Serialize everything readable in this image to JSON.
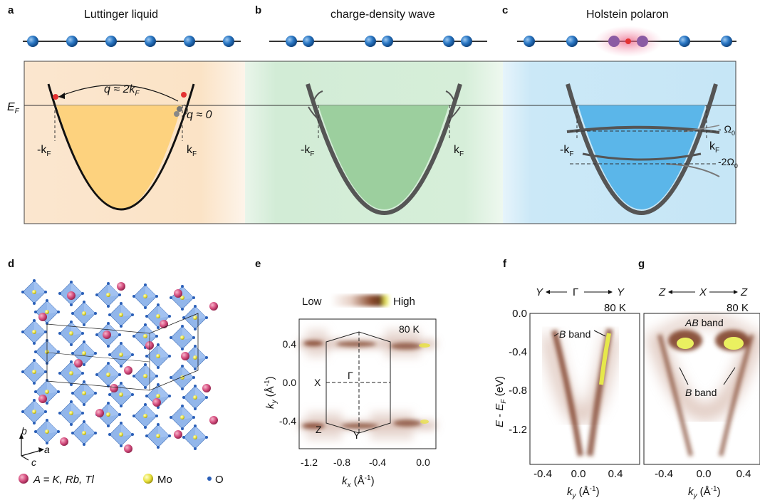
{
  "panels": {
    "a": {
      "label": "a",
      "title": "Luttinger liquid"
    },
    "b": {
      "label": "b",
      "title": "charge-density wave"
    },
    "c": {
      "label": "c",
      "title": "Holstein polaron"
    },
    "d": {
      "label": "d"
    },
    "e": {
      "label": "e"
    },
    "f": {
      "label": "f"
    },
    "g": {
      "label": "g"
    }
  },
  "top": {
    "ef_label": "E",
    "ef_sub": "F",
    "q_2kf": "q ≈ 2k",
    "q_2kf_sub": "F",
    "q_0": "q ≈ 0",
    "minus_kf": "-k",
    "kf": "k",
    "kf_sub": "F",
    "omega0": "- Ω",
    "omega0_sub": "0",
    "two_omega0": "-2Ω",
    "two_omega0_sub": "0"
  },
  "crystal": {
    "legend_A": "A = K, Rb, Tl",
    "legend_Mo": "Mo",
    "legend_O": "O",
    "axis_a": "a",
    "axis_b": "b",
    "axis_c": "c"
  },
  "fs_map": {
    "colorbar_low": "Low",
    "colorbar_high": "High",
    "temp": "80 K",
    "ylabel": "k",
    "ylabel_sub": "y",
    "ylabel_unit": " (Å",
    "ylabel_unit_sup": "-1",
    "xlabel": "k",
    "xlabel_sub": "x",
    "point_X": "X",
    "point_Gamma": "Γ",
    "point_Z": "Z",
    "point_Y": "Y",
    "xticks": [
      "-1.2",
      "-0.8",
      "-0.4",
      "0.0"
    ],
    "yticks": [
      "0.4",
      "0.0",
      "-0.4"
    ]
  },
  "arpes_f": {
    "path_left": "Y",
    "path_mid": "Γ",
    "path_right": "Y",
    "temp": "80 K",
    "band_label": "B band",
    "ylabel": "E - E",
    "ylabel_unit": " (eV)",
    "xlabel": "k",
    "xlabel_sub": "y",
    "xticks": [
      "-0.4",
      "0.0",
      "0.4"
    ],
    "yticks": [
      "0.0",
      "-0.4",
      "-0.8",
      "-1.2"
    ]
  },
  "arpes_g": {
    "path_left": "Z",
    "path_mid": "X",
    "path_right": "Z",
    "temp": "80 K",
    "ab_label": "AB band",
    "b_label": "B band",
    "xlabel": "k",
    "xlabel_sub": "y",
    "xticks": [
      "-0.4",
      "0.0",
      "0.4"
    ]
  },
  "colors": {
    "liquid_fill": "#fdd27e",
    "cdw_fill": "#9ccf9e",
    "polaron_fill": "#5bb6e9",
    "atom": "#2a77c4",
    "arpes": "#7a3a22",
    "octa": "#7fa9e6",
    "pink_atom": "#d64f80"
  }
}
